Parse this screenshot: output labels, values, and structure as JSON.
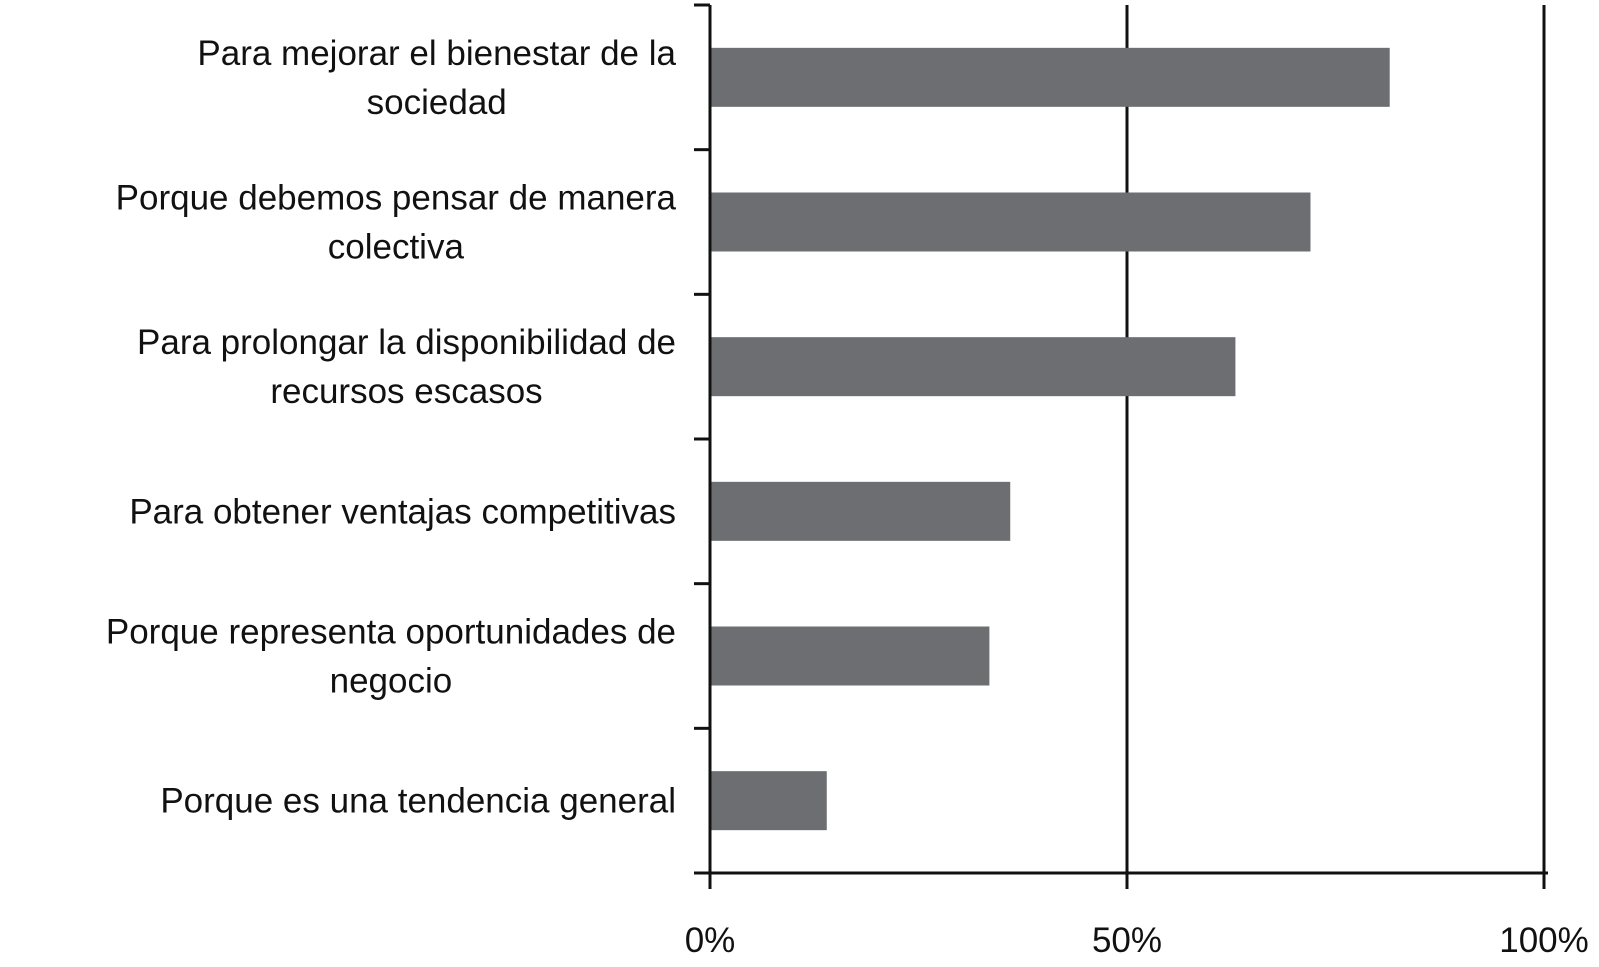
{
  "chart_data": {
    "type": "bar",
    "orientation": "horizontal",
    "categories": [
      [
        "Para mejorar el bienestar de la",
        "sociedad"
      ],
      [
        "Porque debemos pensar de manera",
        "colectiva"
      ],
      [
        "Para prolongar la disponibilidad de",
        "recursos escasos"
      ],
      [
        "Para obtener ventajas competitivas"
      ],
      [
        "Porque representa oportunidades de",
        "negocio"
      ],
      [
        "Porque es una tendencia general"
      ]
    ],
    "values": [
      81.5,
      72,
      63,
      36,
      33.5,
      14
    ],
    "xlim": [
      0,
      100
    ],
    "xticks": [
      {
        "value": 0,
        "label": "0%"
      },
      {
        "value": 50,
        "label": "50%"
      },
      {
        "value": 100,
        "label": "100%"
      }
    ],
    "gridlines": [
      50,
      100
    ],
    "bar_color": "#6d6e71",
    "title": "",
    "xlabel": "",
    "ylabel": ""
  }
}
